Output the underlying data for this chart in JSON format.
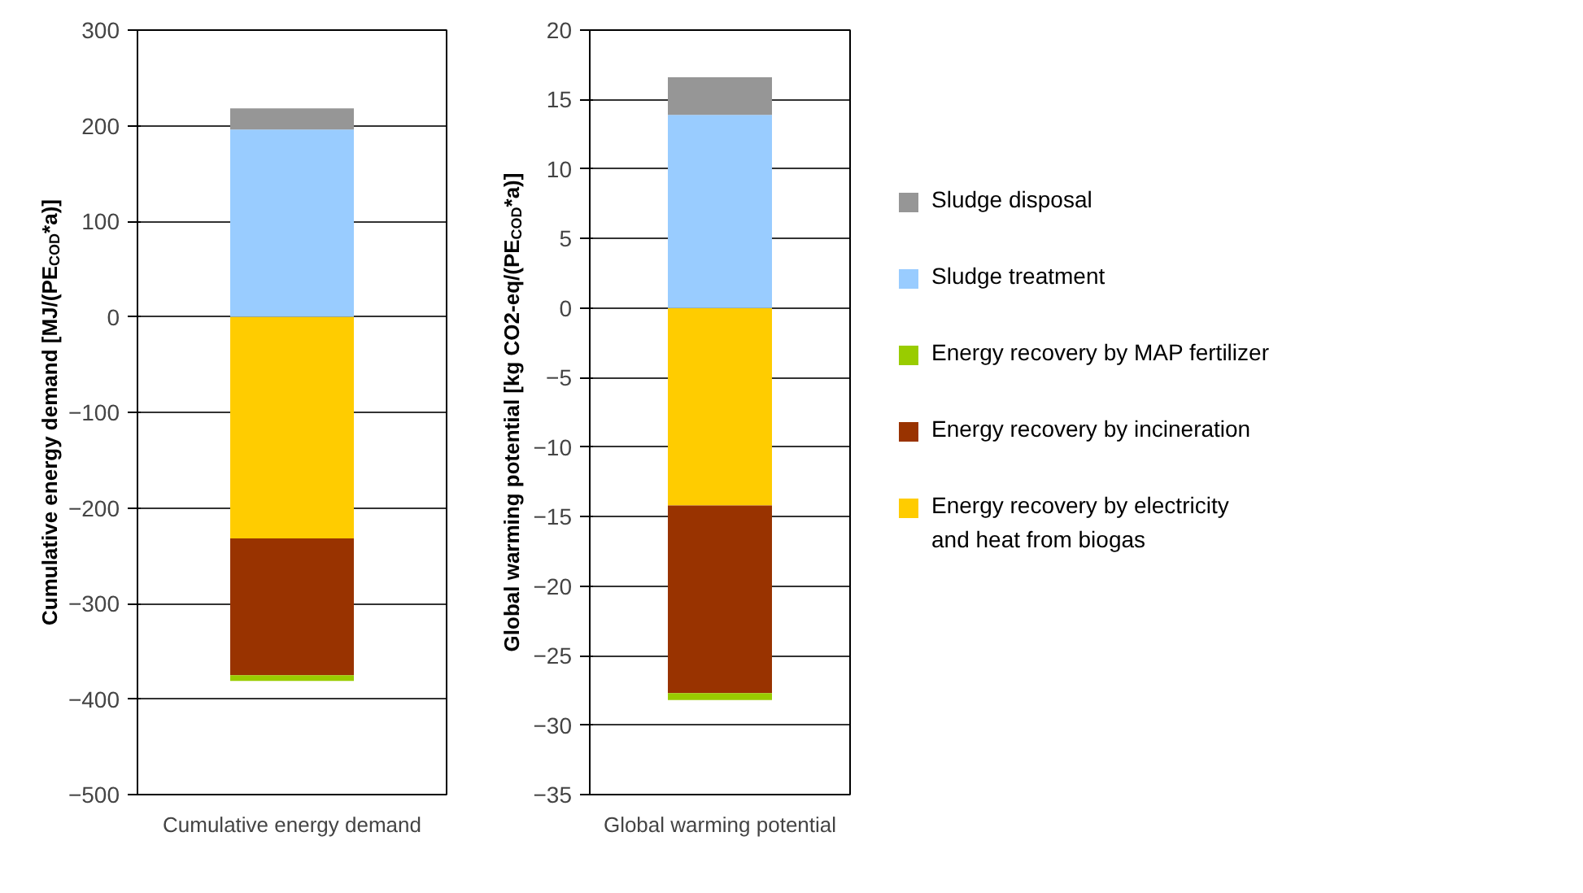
{
  "chart_data": [
    {
      "type": "bar",
      "stacked": true,
      "categories": [
        "Cumulative energy demand"
      ],
      "ylabel": "Cumulative energy demand [MJ/(PE$_{COD}$*a)]",
      "ylim": [
        -500,
        300
      ],
      "yticks": [
        -500,
        -400,
        -300,
        -200,
        -100,
        0,
        100,
        200,
        300
      ],
      "grid": "y",
      "legend": false,
      "series": [
        {
          "color": "#ffcc00",
          "values": [
            -232
          ]
        },
        {
          "color": "#993300",
          "values": [
            -143
          ]
        },
        {
          "color": "#99cc00",
          "values": [
            -6
          ]
        },
        {
          "color": "#99ccff",
          "values": [
            196
          ]
        },
        {
          "color": "#969696",
          "values": [
            22
          ]
        }
      ]
    },
    {
      "type": "bar",
      "stacked": true,
      "categories": [
        "Global warming potential"
      ],
      "ylabel": "Global warming potential [kg CO2-eq/(PE$_{COD}$*a)]",
      "ylim": [
        -35,
        20
      ],
      "yticks": [
        -35,
        -30,
        -25,
        -20,
        -15,
        -10,
        -5,
        0,
        5,
        10,
        15,
        20
      ],
      "grid": "y",
      "legend": "right",
      "series": [
        {
          "name": "Energy recovery by electricity\nand heat from biogas",
          "color": "#ffcc00",
          "values": [
            -14.2
          ]
        },
        {
          "name": "Energy recovery by incineration",
          "color": "#993300",
          "values": [
            -13.5
          ]
        },
        {
          "name": "Energy recovery by MAP fertilizer",
          "color": "#99cc00",
          "values": [
            -0.5
          ]
        },
        {
          "name": "Sludge treatment",
          "color": "#99ccff",
          "values": [
            13.9
          ]
        },
        {
          "name": "Sludge disposal",
          "color": "#969696",
          "values": [
            2.7
          ]
        }
      ]
    }
  ]
}
